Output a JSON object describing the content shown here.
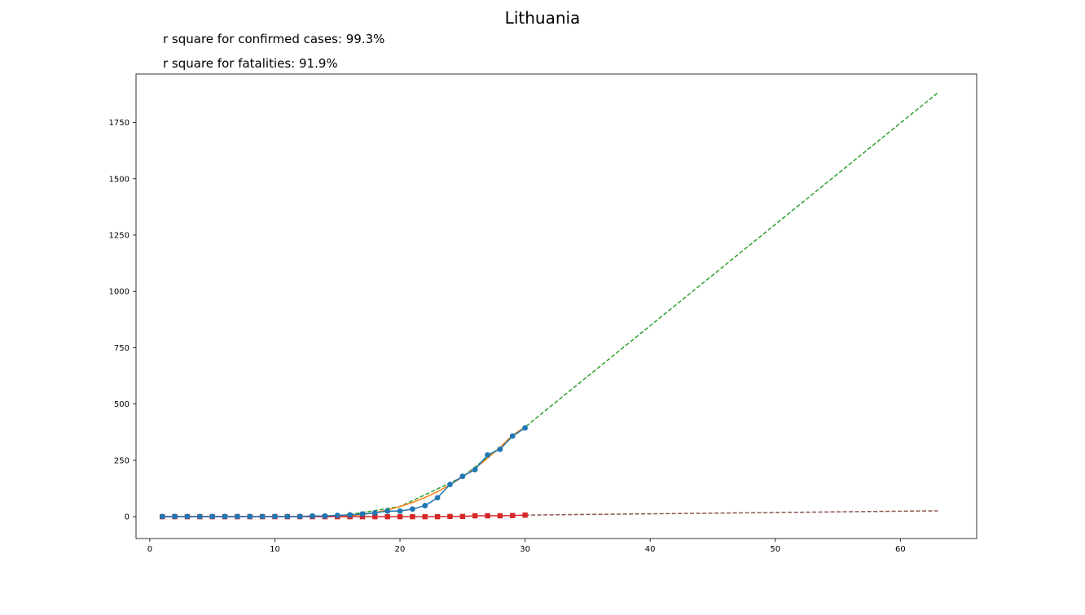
{
  "chart_data": {
    "type": "line",
    "title": "Lithuania",
    "annotations": [
      "r square for confirmed cases: 99.3%",
      "r square for fatalities: 91.9%"
    ],
    "xlabel": "",
    "ylabel": "",
    "xlim": [
      -1.1,
      66.1
    ],
    "ylim": [
      -97,
      1965
    ],
    "x_ticks": [
      0,
      10,
      20,
      30,
      40,
      50,
      60
    ],
    "y_ticks": [
      0,
      250,
      500,
      750,
      1000,
      1250,
      1500,
      1750
    ],
    "grid": false,
    "series": [
      {
        "role": "confirmed",
        "style": "line-markers",
        "marker": "circle",
        "color": "#1f77b4",
        "x": [
          1,
          2,
          3,
          4,
          5,
          6,
          7,
          8,
          9,
          10,
          11,
          12,
          13,
          14,
          15,
          16,
          17,
          18,
          19,
          20,
          21,
          22,
          23,
          24,
          25,
          26,
          27,
          28,
          29,
          30
        ],
        "y": [
          1,
          1,
          1,
          1,
          1,
          1,
          1,
          1,
          1,
          1,
          1,
          1,
          3,
          3,
          6,
          8,
          12,
          17,
          25,
          25,
          34,
          49,
          84,
          143,
          179,
          209,
          274,
          299,
          358,
          394
        ]
      },
      {
        "role": "confirmed-fit",
        "style": "line",
        "color": "#ff7f0e",
        "x": [
          15,
          16,
          17,
          18,
          19,
          20,
          21,
          22,
          23,
          24,
          25,
          26,
          27,
          28,
          29,
          30
        ],
        "y": [
          1,
          4,
          10,
          18,
          30,
          45,
          63,
          85,
          111,
          141,
          176,
          215,
          259,
          308,
          362,
          398
        ]
      },
      {
        "role": "confirmed-projection",
        "style": "dashed",
        "color": "#2ca02c",
        "x": [
          15,
          20,
          25,
          30,
          63
        ],
        "y": [
          1,
          45,
          176,
          398,
          1882
        ]
      },
      {
        "role": "fatalities",
        "style": "line-markers",
        "marker": "square",
        "color": "#d62728",
        "x": [
          1,
          2,
          3,
          4,
          5,
          6,
          7,
          8,
          9,
          10,
          11,
          12,
          13,
          14,
          15,
          16,
          17,
          18,
          19,
          20,
          21,
          22,
          23,
          24,
          25,
          26,
          27,
          28,
          29,
          30
        ],
        "y": [
          0,
          0,
          0,
          0,
          0,
          0,
          0,
          0,
          0,
          0,
          0,
          0,
          0,
          0,
          0,
          0,
          0,
          0,
          0,
          0,
          0,
          0,
          0,
          1,
          1,
          4,
          4,
          4,
          5,
          7
        ]
      },
      {
        "role": "fatalities-projection",
        "style": "dashed",
        "color": "#8c564b",
        "x": [
          30,
          63
        ],
        "y": [
          7,
          26
        ]
      }
    ]
  }
}
